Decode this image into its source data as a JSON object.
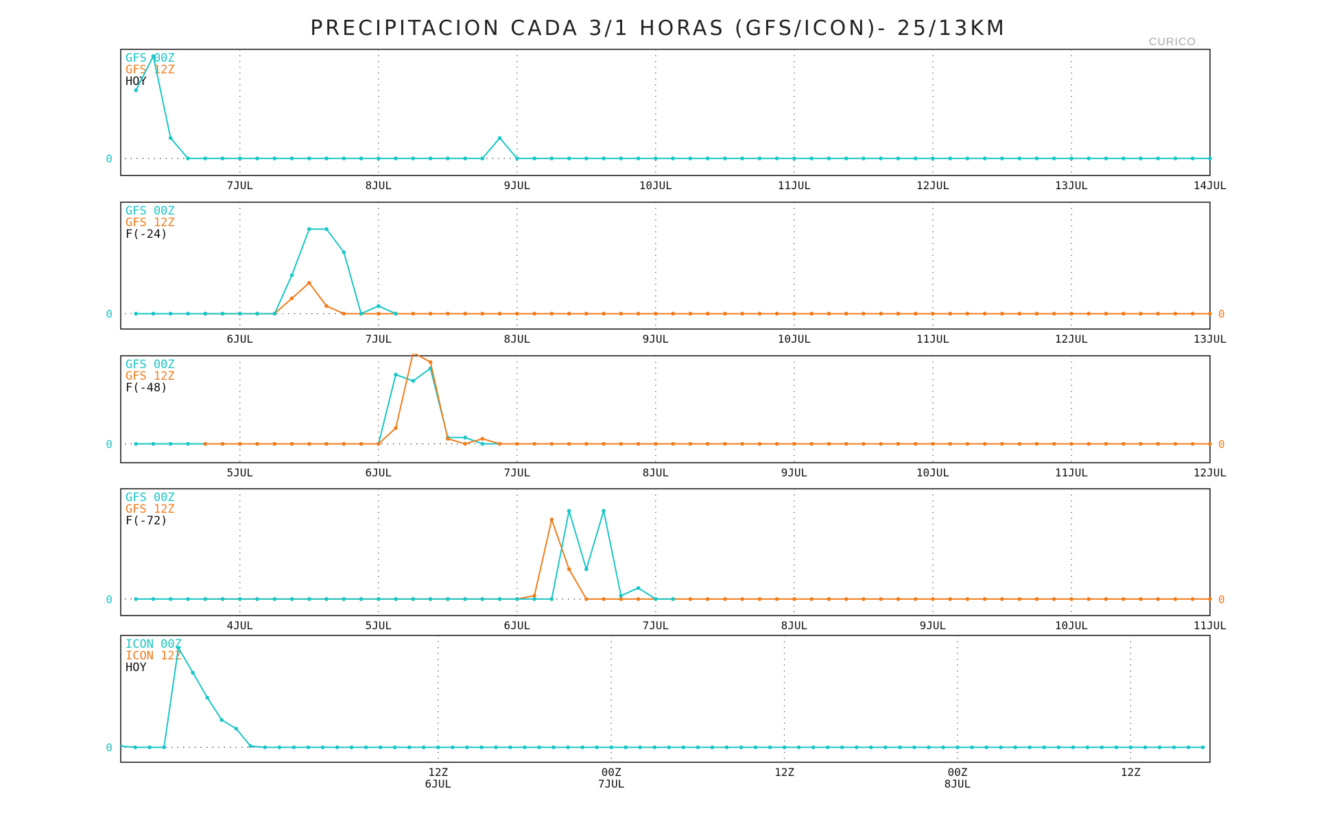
{
  "title": "PRECIPITACION CADA 3/1 HORAS (GFS/ICON)- 25/13KM",
  "station": "CURICO",
  "colors": {
    "gfs00": "#1ac6c6",
    "gfs12": "#f07d1e",
    "axis": "#111111",
    "grid": "#555555"
  },
  "chart_data": [
    {
      "type": "line",
      "legend": [
        "GFS 00Z",
        "GFS 12Z",
        "HOY"
      ],
      "x_ticks": [
        "7JUL",
        "8JUL",
        "9JUL",
        "10JUL",
        "11JUL",
        "12JUL",
        "13JUL",
        "14JUL"
      ],
      "y_tick_labels": [
        "0"
      ],
      "right_zero": false,
      "xlim": [
        -0.86,
        7.0
      ],
      "ylim": [
        -0.25,
        1.6
      ],
      "series": [
        {
          "name": "GFS 00Z",
          "color": "gfs00",
          "x_start": -0.75,
          "step": 0.125,
          "values": [
            1.0,
            1.5,
            0.3,
            0,
            0,
            0,
            0,
            0,
            0,
            0,
            0,
            0,
            0,
            0,
            0,
            0,
            0,
            0,
            0,
            0,
            0,
            0.3,
            0,
            0,
            0,
            0,
            0,
            0,
            0,
            0,
            0,
            0,
            0,
            0,
            0,
            0,
            0,
            0,
            0,
            0,
            0,
            0,
            0,
            0,
            0,
            0,
            0,
            0,
            0,
            0,
            0,
            0,
            0,
            0,
            0,
            0,
            0,
            0,
            0,
            0,
            0,
            0,
            0
          ]
        }
      ]
    },
    {
      "type": "line",
      "legend": [
        "GFS 00Z",
        "GFS 12Z",
        "F(-24)"
      ],
      "x_ticks": [
        "6JUL",
        "7JUL",
        "8JUL",
        "9JUL",
        "10JUL",
        "11JUL",
        "12JUL",
        "13JUL"
      ],
      "y_tick_labels": [
        "0"
      ],
      "right_zero": true,
      "xlim": [
        -0.86,
        7.0
      ],
      "ylim": [
        -0.2,
        1.45
      ],
      "series": [
        {
          "name": "GFS 00Z",
          "color": "gfs00",
          "x_start": -0.75,
          "step": 0.125,
          "values": [
            0,
            0,
            0,
            0,
            0,
            0,
            0,
            0,
            0,
            0.5,
            1.1,
            1.1,
            0.8,
            0,
            0.1,
            0
          ]
        },
        {
          "name": "GFS 12Z",
          "color": "gfs12",
          "x_start": -0.25,
          "step": 0.125,
          "values": [
            0,
            0,
            0,
            0,
            0,
            0.2,
            0.4,
            0.1,
            0,
            0,
            0,
            0,
            0,
            0,
            0,
            0,
            0,
            0,
            0,
            0,
            0,
            0,
            0,
            0,
            0,
            0,
            0,
            0,
            0,
            0,
            0,
            0,
            0,
            0,
            0,
            0,
            0,
            0,
            0,
            0,
            0,
            0,
            0,
            0,
            0,
            0,
            0,
            0,
            0,
            0,
            0,
            0,
            0,
            0,
            0,
            0,
            0,
            0,
            0
          ]
        }
      ]
    },
    {
      "type": "line",
      "legend": [
        "GFS 00Z",
        "GFS 12Z",
        "F(-48)"
      ],
      "x_ticks": [
        "5JUL",
        "6JUL",
        "7JUL",
        "8JUL",
        "9JUL",
        "10JUL",
        "11JUL",
        "12JUL"
      ],
      "y_tick_labels": [
        "0"
      ],
      "right_zero": true,
      "xlim": [
        -0.86,
        7.0
      ],
      "ylim": [
        -0.3,
        1.4
      ],
      "series": [
        {
          "name": "GFS 00Z",
          "color": "gfs00",
          "x_start": -0.75,
          "step": 0.125,
          "values": [
            0,
            0,
            0,
            0,
            0,
            0,
            0,
            0,
            0,
            0,
            0,
            0,
            0,
            0,
            0,
            1.1,
            1.0,
            1.2,
            0.1,
            0.1,
            0,
            0
          ]
        },
        {
          "name": "GFS 12Z",
          "color": "gfs12",
          "x_start": -0.25,
          "step": 0.125,
          "values": [
            0,
            0,
            0,
            0,
            0,
            0,
            0,
            0,
            0,
            0,
            0,
            0.25,
            1.45,
            1.3,
            0.08,
            0,
            0.08,
            0,
            0,
            0,
            0,
            0,
            0,
            0,
            0,
            0,
            0,
            0,
            0,
            0,
            0,
            0,
            0,
            0,
            0,
            0,
            0,
            0,
            0,
            0,
            0,
            0,
            0,
            0,
            0,
            0,
            0,
            0,
            0,
            0,
            0,
            0,
            0,
            0,
            0,
            0,
            0,
            0,
            0
          ]
        }
      ]
    },
    {
      "type": "line",
      "legend": [
        "GFS 00Z",
        "GFS 12Z",
        "F(-72)"
      ],
      "x_ticks": [
        "4JUL",
        "5JUL",
        "6JUL",
        "7JUL",
        "8JUL",
        "9JUL",
        "10JUL",
        "11JUL"
      ],
      "y_tick_labels": [
        "0"
      ],
      "right_zero": true,
      "xlim": [
        -0.86,
        7.0
      ],
      "ylim": [
        -0.15,
        1.0
      ],
      "series": [
        {
          "name": "GFS 00Z",
          "color": "gfs00",
          "x_start": -0.75,
          "step": 0.125,
          "values": [
            0,
            0,
            0,
            0,
            0,
            0,
            0,
            0,
            0,
            0,
            0,
            0,
            0,
            0,
            0,
            0,
            0,
            0,
            0,
            0,
            0,
            0,
            0,
            0,
            0,
            0.8,
            0.27,
            0.8,
            0.03,
            0.1,
            0,
            0
          ]
        },
        {
          "name": "GFS 12Z",
          "color": "gfs12",
          "x_start": -0.25,
          "step": 0.125,
          "values": [
            0,
            0,
            0,
            0,
            0,
            0,
            0,
            0,
            0,
            0,
            0,
            0,
            0,
            0,
            0,
            0,
            0,
            0,
            0,
            0.03,
            0.72,
            0.27,
            0,
            0,
            0,
            0,
            0,
            0,
            0,
            0,
            0,
            0,
            0,
            0,
            0,
            0,
            0,
            0,
            0,
            0,
            0,
            0,
            0,
            0,
            0,
            0,
            0,
            0,
            0,
            0,
            0,
            0,
            0,
            0,
            0,
            0,
            0,
            0,
            0
          ]
        }
      ]
    },
    {
      "type": "line",
      "legend": [
        "ICON 00Z",
        "ICON 12Z",
        "HOY"
      ],
      "x_ticks": [
        {
          "top": "12Z",
          "bottom": "6JUL"
        },
        {
          "top": "00Z",
          "bottom": "7JUL"
        },
        {
          "top": "12Z",
          "bottom": ""
        },
        {
          "top": "00Z",
          "bottom": "8JUL"
        },
        {
          "top": "12Z",
          "bottom": ""
        }
      ],
      "y_tick_labels": [
        "0"
      ],
      "right_zero": false,
      "xlim": [
        -0.9167,
        2.2292
      ],
      "ylim": [
        -0.12,
        0.9
      ],
      "series": [
        {
          "name": "ICON 00Z",
          "color": "gfs00",
          "x_start": -0.9167,
          "step": 0.04167,
          "values": [
            0.01,
            0,
            0,
            0,
            0.8,
            0.6,
            0.4,
            0.22,
            0.15,
            0.01,
            0,
            0,
            0,
            0,
            0,
            0,
            0,
            0,
            0,
            0,
            0,
            0,
            0,
            0,
            0,
            0,
            0,
            0,
            0,
            0,
            0,
            0,
            0,
            0,
            0,
            0,
            0,
            0,
            0,
            0,
            0,
            0,
            0,
            0,
            0,
            0,
            0,
            0,
            0,
            0,
            0,
            0,
            0,
            0,
            0,
            0,
            0,
            0,
            0,
            0,
            0,
            0,
            0,
            0,
            0,
            0,
            0,
            0,
            0,
            0,
            0,
            0,
            0,
            0,
            0,
            0
          ]
        }
      ]
    }
  ]
}
